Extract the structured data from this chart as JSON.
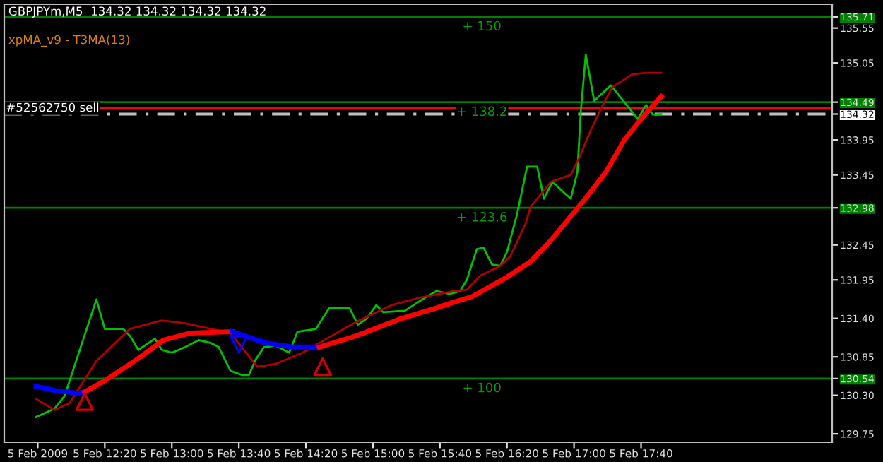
{
  "chart_data": {
    "type": "line",
    "title": "GBPJPYm,M5  134.32 134.32 134.32 134.32",
    "annotations": [
      "xpMA_v9 - T3MA(13)",
      {
        "text": "+ 150",
        "x": "2009-02-05T16:05",
        "y": 135.71
      },
      {
        "text": "+ 138.2",
        "x": "2009-02-05T16:05",
        "y": 134.49
      },
      {
        "text": "+ 123.6",
        "x": "2009-02-05T16:05",
        "y": 132.98
      },
      {
        "text": "+ 100",
        "x": "2009-02-05T16:05",
        "y": 130.54
      }
    ],
    "xlim": [
      "2009-02-05T11:20",
      "2009-02-05T19:34"
    ],
    "ylim": [
      129.63,
      135.89
    ],
    "xticks": [
      {
        "value": "2009-02-05T11:40",
        "label": "5 Feb 2009"
      },
      {
        "value": "2009-02-05T12:20",
        "label": "5 Feb 12:20"
      },
      {
        "value": "2009-02-05T13:00",
        "label": "5 Feb 13:00"
      },
      {
        "value": "2009-02-05T13:40",
        "label": "5 Feb 13:40"
      },
      {
        "value": "2009-02-05T14:20",
        "label": "5 Feb 14:20"
      },
      {
        "value": "2009-02-05T15:00",
        "label": "5 Feb 15:00"
      },
      {
        "value": "2009-02-05T15:40",
        "label": "5 Feb 15:40"
      },
      {
        "value": "2009-02-05T16:20",
        "label": "5 Feb 16:20"
      },
      {
        "value": "2009-02-05T17:00",
        "label": "5 Feb 17:00"
      },
      {
        "value": "2009-02-05T17:40",
        "label": "5 Feb 17:40"
      }
    ],
    "yticks": [
      129.75,
      {
        "value": 130.3,
        "label": "130.30"
      },
      130.54,
      130.85,
      {
        "value": 131.4,
        "label": "131.40"
      },
      131.95,
      132.45,
      132.98,
      133.45,
      133.95,
      134.32,
      134.49,
      135.05,
      135.55,
      135.71
    ],
    "grid": false,
    "ref_lines": [
      {
        "axis": "y",
        "value": 135.71,
        "color": "#008000",
        "line_style": "solid"
      },
      {
        "axis": "y",
        "value": 134.49,
        "color": "#008000",
        "line_style": "solid"
      },
      {
        "axis": "y",
        "value": 132.98,
        "color": "#008000",
        "line_style": "solid"
      },
      {
        "axis": "y",
        "value": 130.54,
        "color": "#008000",
        "line_style": "solid"
      },
      {
        "axis": "y",
        "value": 134.41,
        "color": "#ff0000",
        "line_style": "solid"
      },
      {
        "axis": "y",
        "value": 134.32,
        "label": "#52562750 sell",
        "color": "#c0c0c0",
        "line_style": "dashed"
      }
    ],
    "series": [
      {
        "color": "#00c000",
        "x": [
          "2009-02-05T11:39",
          "2009-02-05T11:50",
          "2009-02-05T11:56",
          "2009-02-05T12:15",
          "2009-02-05T12:20",
          "2009-02-05T12:31",
          "2009-02-05T12:35",
          "2009-02-05T12:40",
          "2009-02-05T12:50",
          "2009-02-05T12:54",
          "2009-02-05T13:00",
          "2009-02-05T13:08",
          "2009-02-05T13:16",
          "2009-02-05T13:23",
          "2009-02-05T13:28",
          "2009-02-05T13:35",
          "2009-02-05T13:42",
          "2009-02-05T13:46",
          "2009-02-05T13:50",
          "2009-02-05T13:55",
          "2009-02-05T14:02",
          "2009-02-05T14:10",
          "2009-02-05T14:15",
          "2009-02-05T14:26",
          "2009-02-05T14:34",
          "2009-02-05T14:46",
          "2009-02-05T14:51",
          "2009-02-05T14:56",
          "2009-02-05T15:02",
          "2009-02-05T15:06",
          "2009-02-05T15:19",
          "2009-02-05T15:32",
          "2009-02-05T15:38",
          "2009-02-05T15:46",
          "2009-02-05T15:52",
          "2009-02-05T15:56",
          "2009-02-05T16:02",
          "2009-02-05T16:06",
          "2009-02-05T16:11",
          "2009-02-05T16:16",
          "2009-02-05T16:20",
          "2009-02-05T16:26",
          "2009-02-05T16:32",
          "2009-02-05T16:38",
          "2009-02-05T16:42",
          "2009-02-05T16:47",
          "2009-02-05T16:58",
          "2009-02-05T17:02",
          "2009-02-05T17:04",
          "2009-02-05T17:07",
          "2009-02-05T17:12",
          "2009-02-05T17:22",
          "2009-02-05T17:28",
          "2009-02-05T17:38",
          "2009-02-05T17:43",
          "2009-02-05T17:47",
          "2009-02-05T17:52"
        ],
        "values": [
          129.99,
          130.11,
          130.29,
          131.67,
          131.25,
          131.25,
          131.15,
          130.95,
          131.11,
          130.95,
          130.91,
          130.99,
          131.09,
          131.05,
          130.99,
          130.65,
          130.59,
          130.59,
          130.81,
          130.99,
          131.01,
          130.91,
          131.21,
          131.25,
          131.55,
          131.55,
          131.31,
          131.39,
          131.59,
          131.49,
          131.51,
          131.71,
          131.79,
          131.75,
          131.79,
          131.95,
          132.39,
          132.41,
          132.17,
          132.15,
          132.35,
          132.89,
          133.57,
          133.57,
          133.11,
          133.35,
          133.11,
          133.49,
          134.35,
          135.17,
          134.51,
          134.73,
          134.55,
          134.25,
          134.45,
          134.31,
          134.32
        ]
      },
      {
        "color": "#b00000",
        "x": [
          "2009-02-05T11:39",
          "2009-02-05T11:50",
          "2009-02-05T11:59",
          "2009-02-05T12:15",
          "2009-02-05T12:35",
          "2009-02-05T12:54",
          "2009-02-05T13:08",
          "2009-02-05T13:35",
          "2009-02-05T13:51",
          "2009-02-05T14:02",
          "2009-02-05T14:18",
          "2009-02-05T14:31",
          "2009-02-05T14:50",
          "2009-02-05T15:11",
          "2009-02-05T15:27",
          "2009-02-05T15:48",
          "2009-02-05T15:56",
          "2009-02-05T16:04",
          "2009-02-05T16:16",
          "2009-02-05T16:22",
          "2009-02-05T16:31",
          "2009-02-05T16:34",
          "2009-02-05T16:46",
          "2009-02-05T16:58",
          "2009-02-05T17:03",
          "2009-02-05T17:10",
          "2009-02-05T17:18",
          "2009-02-05T17:23",
          "2009-02-05T17:35",
          "2009-02-05T17:43",
          "2009-02-05T17:52"
        ],
        "values": [
          130.25,
          130.09,
          130.19,
          130.79,
          131.25,
          131.37,
          131.33,
          131.19,
          130.71,
          130.75,
          130.91,
          131.09,
          131.35,
          131.59,
          131.69,
          131.79,
          131.81,
          132.01,
          132.15,
          132.29,
          132.75,
          132.99,
          133.35,
          133.45,
          133.69,
          134.09,
          134.49,
          134.71,
          134.89,
          134.91,
          134.91
        ]
      },
      {
        "color": "#0000ff",
        "x": [
          "2009-02-05T11:39",
          "2009-02-05T11:50",
          "2009-02-05T12:04",
          "2009-02-05T12:08"
        ],
        "values": [
          130.43,
          130.37,
          130.33,
          130.35
        ]
      },
      {
        "color": "#ff0000",
        "x": [
          "2009-02-05T12:08",
          "2009-02-05T12:20",
          "2009-02-05T12:39",
          "2009-02-05T12:55",
          "2009-02-05T13:11",
          "2009-02-05T13:36"
        ],
        "values": [
          130.35,
          130.51,
          130.81,
          131.09,
          131.19,
          131.21
        ]
      },
      {
        "color": "#0000ff",
        "x": [
          "2009-02-05T13:36",
          "2009-02-05T13:56",
          "2009-02-05T14:12",
          "2009-02-05T14:28"
        ],
        "values": [
          131.21,
          131.05,
          130.99,
          130.99
        ]
      },
      {
        "color": "#ff0000",
        "x": [
          "2009-02-05T14:28",
          "2009-02-05T14:50",
          "2009-02-05T15:16",
          "2009-02-05T15:38",
          "2009-02-05T15:48",
          "2009-02-05T15:59",
          "2009-02-05T16:20",
          "2009-02-05T16:34",
          "2009-02-05T16:46",
          "2009-02-05T16:55",
          "2009-02-05T17:08",
          "2009-02-05T17:19",
          "2009-02-05T17:30",
          "2009-02-05T17:40",
          "2009-02-05T17:52"
        ],
        "values": [
          130.99,
          131.15,
          131.39,
          131.55,
          131.63,
          131.71,
          131.99,
          132.21,
          132.51,
          132.77,
          133.15,
          133.49,
          133.95,
          134.25,
          134.57
        ]
      },
      {
        "type": "scatter",
        "marker": "triangle",
        "color": "#d00000",
        "x": [
          "2009-02-05T12:08",
          "2009-02-05T14:30"
        ],
        "values": [
          130.21,
          130.71
        ]
      },
      {
        "type": "scatter",
        "marker": "triangle_down",
        "color": "#0000ff",
        "x": [
          "2009-02-05T13:40"
        ],
        "values": [
          131.03
        ]
      }
    ]
  }
}
